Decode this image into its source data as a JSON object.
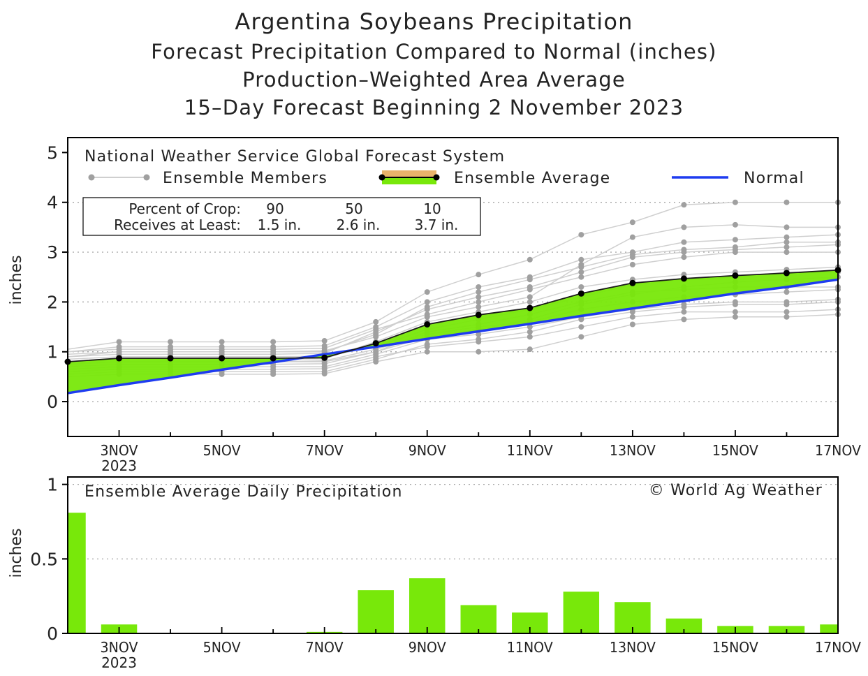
{
  "titles": {
    "main": "Argentina Soybeans Precipitation",
    "line2": "Forecast Precipitation Compared to Normal (inches)",
    "line3": "Production–Weighted Area Average",
    "line4": "15–Day Forecast Beginning 2 November 2023"
  },
  "colors": {
    "member_line": "#cfcfcf",
    "member_dot": "#a0a0a0",
    "average_fill": "#78e80a",
    "average_line": "#1a1a1a",
    "normal_line": "#1e3cf0",
    "legend_band": "#e8b36a",
    "grid": "#9a9a9a"
  },
  "chart_data": [
    {
      "type": "line",
      "model_label": "National Weather Service Global Forecast System",
      "legend": {
        "members": "Ensemble Members",
        "average": "Ensemble Average",
        "normal": "Normal"
      },
      "crop_box": {
        "row1_label": "Percent of Crop:",
        "row2_label": "Receives at Least:",
        "percents": [
          "90",
          "50",
          "10"
        ],
        "amounts": [
          "1.5 in.",
          "2.6 in.",
          "3.7 in."
        ]
      },
      "ylabel": "inches",
      "ylim": [
        -0.7,
        5.3
      ],
      "yticks": [
        0,
        1,
        2,
        3,
        4,
        5
      ],
      "ytick_labels": [
        "0",
        "1",
        "2",
        "3",
        "4",
        "5"
      ],
      "xlim": [
        2,
        17
      ],
      "x_ticks": [
        {
          "x": 3,
          "label": "3NOV",
          "sub": "2023"
        },
        {
          "x": 5,
          "label": "5NOV",
          "sub": ""
        },
        {
          "x": 7,
          "label": "7NOV",
          "sub": ""
        },
        {
          "x": 9,
          "label": "9NOV",
          "sub": ""
        },
        {
          "x": 11,
          "label": "11NOV",
          "sub": ""
        },
        {
          "x": 13,
          "label": "13NOV",
          "sub": ""
        },
        {
          "x": 15,
          "label": "15NOV",
          "sub": ""
        },
        {
          "x": 17,
          "label": "17NOV",
          "sub": ""
        }
      ],
      "x": [
        2,
        3,
        4,
        5,
        6,
        7,
        8,
        9,
        10,
        11,
        12,
        13,
        14,
        15,
        16,
        17
      ],
      "ensemble_average": [
        0.8,
        0.87,
        0.87,
        0.87,
        0.87,
        0.88,
        1.17,
        1.55,
        1.74,
        1.88,
        2.17,
        2.38,
        2.47,
        2.53,
        2.58,
        2.64
      ],
      "normal": [
        0.17,
        0.33,
        0.48,
        0.64,
        0.79,
        0.95,
        1.1,
        1.26,
        1.41,
        1.56,
        1.72,
        1.87,
        2.02,
        2.17,
        2.3,
        2.45
      ],
      "members": [
        [
          0.75,
          0.8,
          0.8,
          0.8,
          0.8,
          0.82,
          1.05,
          1.35,
          1.5,
          1.6,
          1.85,
          2.0,
          2.1,
          2.15,
          2.2,
          2.25
        ],
        [
          0.9,
          0.95,
          0.95,
          0.95,
          0.95,
          0.97,
          1.4,
          1.85,
          2.1,
          2.3,
          2.6,
          2.9,
          3.0,
          3.05,
          3.1,
          3.15
        ],
        [
          0.6,
          0.65,
          0.65,
          0.65,
          0.65,
          0.66,
          0.9,
          1.1,
          1.2,
          1.3,
          1.5,
          1.7,
          1.8,
          1.8,
          1.8,
          1.85
        ],
        [
          1.05,
          1.2,
          1.2,
          1.2,
          1.2,
          1.22,
          1.6,
          2.2,
          2.55,
          2.85,
          3.35,
          3.6,
          3.95,
          4.0,
          4.0,
          4.0
        ],
        [
          0.5,
          0.55,
          0.55,
          0.55,
          0.55,
          0.56,
          0.8,
          1.0,
          1.0,
          1.05,
          1.3,
          1.55,
          1.65,
          1.7,
          1.7,
          1.75
        ],
        [
          0.8,
          0.85,
          0.85,
          0.85,
          0.85,
          0.86,
          1.2,
          1.6,
          1.8,
          2.0,
          2.3,
          2.45,
          2.55,
          2.6,
          2.65,
          2.7
        ],
        [
          0.95,
          1.0,
          1.0,
          1.0,
          1.0,
          1.02,
          1.3,
          1.7,
          1.9,
          2.1,
          2.75,
          3.3,
          3.5,
          3.55,
          3.5,
          3.5
        ],
        [
          0.7,
          0.75,
          0.75,
          0.75,
          0.75,
          0.76,
          1.0,
          1.4,
          1.55,
          1.75,
          2.0,
          2.2,
          2.25,
          2.3,
          2.3,
          2.3
        ],
        [
          1.0,
          1.1,
          1.1,
          1.1,
          1.1,
          1.12,
          1.5,
          2.0,
          2.3,
          2.5,
          2.85,
          3.0,
          3.2,
          3.25,
          3.3,
          3.35
        ],
        [
          0.65,
          0.7,
          0.7,
          0.7,
          0.7,
          0.7,
          0.95,
          1.25,
          1.35,
          1.5,
          1.7,
          1.85,
          1.95,
          2.0,
          2.0,
          2.05
        ],
        [
          0.85,
          0.9,
          0.9,
          0.9,
          0.9,
          0.91,
          1.1,
          1.45,
          1.65,
          1.85,
          2.1,
          2.35,
          2.45,
          2.5,
          2.6,
          2.6
        ],
        [
          0.9,
          1.0,
          1.0,
          1.0,
          1.0,
          1.0,
          1.35,
          1.9,
          2.2,
          2.45,
          2.7,
          2.95,
          3.05,
          3.1,
          3.2,
          3.2
        ],
        [
          0.75,
          0.8,
          0.8,
          0.8,
          0.8,
          0.8,
          1.0,
          1.3,
          1.45,
          1.65,
          1.95,
          2.15,
          2.3,
          2.4,
          2.45,
          2.5
        ],
        [
          0.55,
          0.6,
          0.6,
          0.6,
          0.6,
          0.6,
          0.85,
          1.15,
          1.25,
          1.4,
          1.65,
          1.8,
          1.9,
          1.95,
          1.95,
          2.0
        ],
        [
          1.0,
          1.05,
          1.05,
          1.05,
          1.05,
          1.07,
          1.45,
          1.75,
          2.0,
          2.25,
          2.5,
          2.75,
          2.9,
          3.0,
          3.0,
          3.0
        ]
      ]
    },
    {
      "type": "bar",
      "label": "Ensemble Average Daily Precipitation",
      "credit": "© World Ag Weather",
      "ylabel": "inches",
      "ylim": [
        0,
        1.05
      ],
      "yticks": [
        0,
        0.5,
        1
      ],
      "ytick_labels": [
        "0",
        "0.5",
        "1"
      ],
      "xlim": [
        2,
        17
      ],
      "x": [
        2,
        3,
        4,
        5,
        6,
        7,
        8,
        9,
        10,
        11,
        12,
        13,
        14,
        15,
        16,
        17
      ],
      "values": [
        0.81,
        0.06,
        0.0,
        0.0,
        0.0,
        0.01,
        0.29,
        0.37,
        0.19,
        0.14,
        0.28,
        0.21,
        0.1,
        0.05,
        0.05,
        0.06
      ]
    }
  ]
}
